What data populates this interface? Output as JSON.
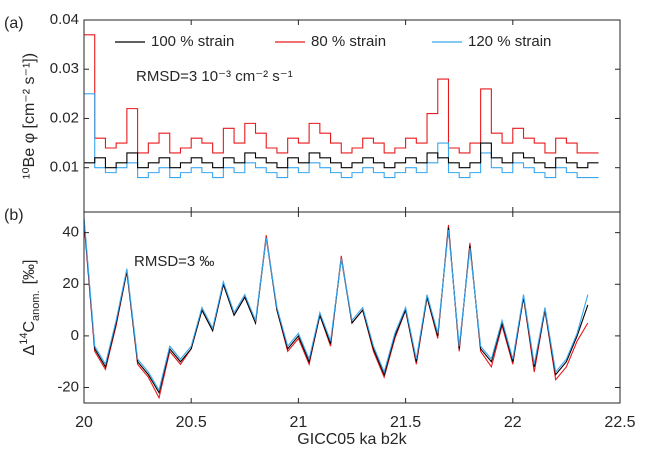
{
  "chart_data": [
    {
      "type": "step",
      "panel_label": "(a)",
      "ylabel": "¹⁰Be φ [cm⁻² s⁻¹])",
      "annotation": "RMSD=3 10⁻³ cm⁻² s⁻¹",
      "legend": "top",
      "xlim": [
        20,
        22.5
      ],
      "xticks": [
        20,
        20.5,
        21,
        21.5,
        22,
        22.5
      ],
      "ylim": [
        0.001,
        0.04
      ],
      "yticks": [
        0.01,
        0.02,
        0.03,
        0.04
      ],
      "x": [
        20.0,
        20.05,
        20.1,
        20.15,
        20.2,
        20.25,
        20.3,
        20.35,
        20.4,
        20.45,
        20.5,
        20.55,
        20.6,
        20.65,
        20.7,
        20.75,
        20.8,
        20.85,
        20.9,
        20.95,
        21.0,
        21.05,
        21.1,
        21.15,
        21.2,
        21.25,
        21.3,
        21.35,
        21.4,
        21.45,
        21.5,
        21.55,
        21.6,
        21.65,
        21.7,
        21.75,
        21.8,
        21.85,
        21.9,
        21.95,
        22.0,
        22.05,
        22.1,
        22.15,
        22.2,
        22.25,
        22.3,
        22.35
      ],
      "series": [
        {
          "name": "80 % strain",
          "color": "#e8191c",
          "values": [
            0.037,
            0.016,
            0.014,
            0.015,
            0.022,
            0.013,
            0.015,
            0.017,
            0.013,
            0.014,
            0.016,
            0.015,
            0.013,
            0.018,
            0.015,
            0.019,
            0.017,
            0.014,
            0.013,
            0.016,
            0.015,
            0.019,
            0.017,
            0.015,
            0.013,
            0.014,
            0.016,
            0.015,
            0.013,
            0.014,
            0.016,
            0.015,
            0.021,
            0.028,
            0.014,
            0.013,
            0.015,
            0.026,
            0.017,
            0.015,
            0.018,
            0.016,
            0.015,
            0.013,
            0.016,
            0.015,
            0.013,
            0.013
          ]
        },
        {
          "name": "120 % strain",
          "color": "#3aa6ee",
          "values": [
            0.025,
            0.01,
            0.009,
            0.01,
            0.011,
            0.008,
            0.009,
            0.01,
            0.008,
            0.009,
            0.01,
            0.009,
            0.008,
            0.01,
            0.009,
            0.011,
            0.01,
            0.009,
            0.008,
            0.01,
            0.009,
            0.011,
            0.01,
            0.009,
            0.008,
            0.009,
            0.01,
            0.009,
            0.008,
            0.009,
            0.01,
            0.009,
            0.011,
            0.015,
            0.009,
            0.008,
            0.009,
            0.013,
            0.01,
            0.009,
            0.011,
            0.01,
            0.009,
            0.008,
            0.01,
            0.009,
            0.008,
            0.008
          ]
        },
        {
          "name": "100 % strain",
          "color": "#000000",
          "values": [
            0.011,
            0.012,
            0.01,
            0.011,
            0.013,
            0.01,
            0.011,
            0.012,
            0.01,
            0.011,
            0.012,
            0.011,
            0.01,
            0.012,
            0.011,
            0.013,
            0.012,
            0.011,
            0.01,
            0.012,
            0.011,
            0.013,
            0.012,
            0.011,
            0.01,
            0.011,
            0.012,
            0.011,
            0.01,
            0.011,
            0.012,
            0.011,
            0.013,
            0.012,
            0.011,
            0.01,
            0.011,
            0.015,
            0.012,
            0.011,
            0.013,
            0.012,
            0.011,
            0.01,
            0.012,
            0.011,
            0.01,
            0.011
          ]
        }
      ]
    },
    {
      "type": "line",
      "panel_label": "(b)",
      "ylabel": [
        "Δ",
        "14",
        "C",
        "anom.",
        "[‰]"
      ],
      "annotation": "RMSD=3 ‰",
      "xlabel": "GICC05 ka b2k",
      "xlim": [
        20,
        22.5
      ],
      "xticks": [
        20,
        20.5,
        21,
        21.5,
        22,
        22.5
      ],
      "ylim": [
        -26,
        48
      ],
      "yticks": [
        -20,
        0,
        20,
        40
      ],
      "x": [
        20.0,
        20.05,
        20.1,
        20.15,
        20.2,
        20.25,
        20.3,
        20.35,
        20.4,
        20.45,
        20.5,
        20.55,
        20.6,
        20.65,
        20.7,
        20.75,
        20.8,
        20.85,
        20.9,
        20.95,
        21.0,
        21.05,
        21.1,
        21.15,
        21.2,
        21.25,
        21.3,
        21.35,
        21.4,
        21.45,
        21.5,
        21.55,
        21.6,
        21.65,
        21.7,
        21.75,
        21.8,
        21.85,
        21.9,
        21.95,
        22.0,
        22.05,
        22.1,
        22.15,
        22.2,
        22.25,
        22.3,
        22.35
      ],
      "series": [
        {
          "color": "#e8191c",
          "values": [
            44,
            -6,
            -13,
            4,
            25,
            -11,
            -16,
            -24,
            -6,
            -11,
            -5,
            10,
            2,
            20,
            8,
            15,
            5,
            39,
            10,
            -6,
            -1,
            -11,
            8,
            -4,
            31,
            5,
            10,
            -6,
            -16,
            -1,
            10,
            -11,
            15,
            -1,
            43,
            -6,
            36,
            -6,
            -12,
            4,
            -11,
            15,
            -14,
            10,
            -17,
            -12,
            -2,
            5
          ]
        },
        {
          "color": "#000000",
          "values": [
            45,
            -5,
            -12,
            5,
            25,
            -10,
            -15,
            -22,
            -5,
            -10,
            -5,
            10,
            2,
            20,
            8,
            15,
            5,
            38,
            10,
            -5,
            0,
            -10,
            8,
            -3,
            30,
            5,
            10,
            -5,
            -15,
            0,
            10,
            -10,
            15,
            0,
            42,
            -5,
            35,
            -5,
            -10,
            5,
            -10,
            15,
            -12,
            10,
            -15,
            -10,
            0,
            12
          ]
        },
        {
          "color": "#3aa6ee",
          "values": [
            46,
            -4,
            -11,
            6,
            26,
            -9,
            -14,
            -21,
            -4,
            -9,
            -4,
            11,
            3,
            21,
            9,
            16,
            6,
            38,
            11,
            -4,
            1,
            -9,
            9,
            -2,
            30,
            6,
            11,
            -4,
            -14,
            1,
            11,
            -9,
            16,
            1,
            41,
            -4,
            34,
            -4,
            -9,
            6,
            -9,
            16,
            -11,
            11,
            -14,
            -9,
            1,
            16
          ]
        }
      ]
    }
  ]
}
